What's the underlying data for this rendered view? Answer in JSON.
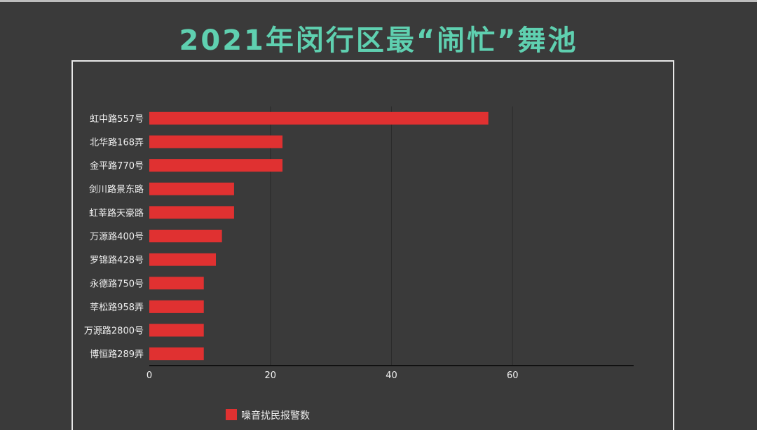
{
  "title": "2021年闵行区最“闹忙”舞池",
  "colors": {
    "background": "#3a3a3a",
    "title": "#5fd0b0",
    "bar": "#e03131",
    "text": "#f0f0f0",
    "frame": "#e8e8e8",
    "grid": "#2a2a2a"
  },
  "chart_data": {
    "type": "bar",
    "orientation": "horizontal",
    "categories": [
      "虹中路557号",
      "北华路168弄",
      "金平路770号",
      "剑川路景东路",
      "虹莘路天豪路",
      "万源路400号",
      "罗锦路428号",
      "永德路750号",
      "莘松路958弄",
      "万源路2800号",
      "博恒路289弄"
    ],
    "series": [
      {
        "name": "噪音扰民报警数",
        "values": [
          56,
          22,
          22,
          14,
          14,
          12,
          11,
          9,
          9,
          9,
          9
        ]
      }
    ],
    "x_ticks": [
      0,
      20,
      40,
      60
    ],
    "xlim": [
      0,
      80
    ],
    "grid": true,
    "legend_position": "bottom"
  }
}
